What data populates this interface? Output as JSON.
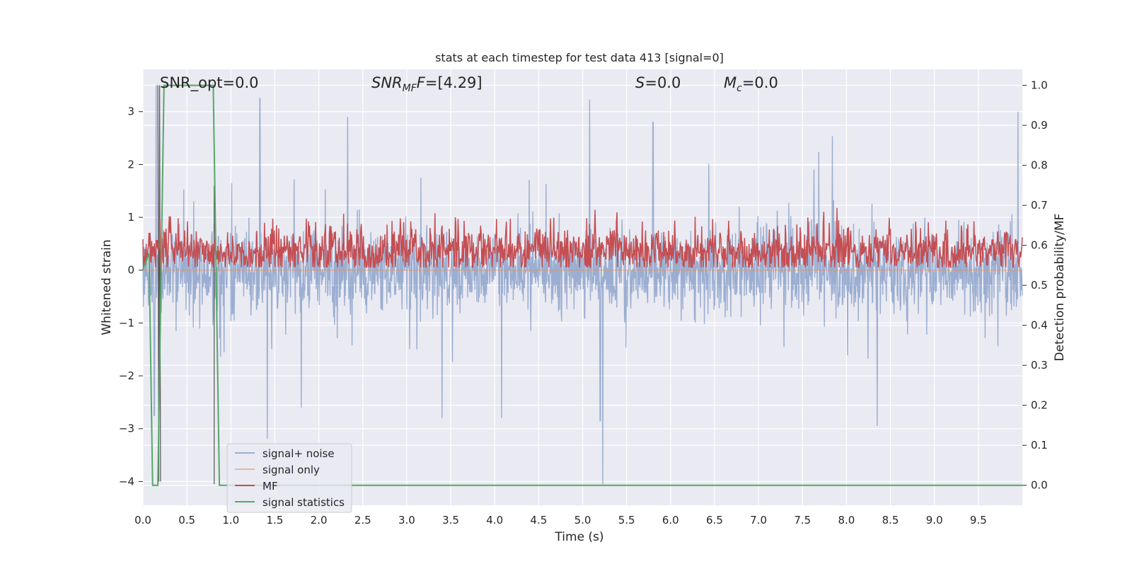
{
  "chart_data": {
    "type": "line",
    "title": "stats at each timestep for test data 413 [signal=0]",
    "xlabel": "Time (s)",
    "ylabel_left": "Whitened strain",
    "ylabel_right": "Detection probability/MF",
    "xlim": [
      0.0,
      10.0
    ],
    "ylim_left": [
      -4.45,
      3.8
    ],
    "ylim_right": [
      -0.05,
      1.04
    ],
    "x_ticks": [
      "0.0",
      "0.5",
      "1.0",
      "1.5",
      "2.0",
      "2.5",
      "3.0",
      "3.5",
      "4.0",
      "4.5",
      "5.0",
      "5.5",
      "6.0",
      "6.5",
      "7.0",
      "7.5",
      "8.0",
      "8.5",
      "9.0",
      "9.5"
    ],
    "y_ticks_left": [
      "3",
      "2",
      "1",
      "0",
      "−1",
      "−2",
      "−3",
      "−4"
    ],
    "y_ticks_right": [
      "1.0",
      "0.9",
      "0.8",
      "0.7",
      "0.6",
      "0.5",
      "0.4",
      "0.3",
      "0.2",
      "0.1",
      "0.0"
    ],
    "grid": true,
    "legend_position": "lower-left",
    "annotations": {
      "snr_opt": "SNR_opt=0.0",
      "snr_mf_var": "SNR",
      "snr_mf_sub": "MF",
      "snr_mf_var2": "F",
      "snr_mf_value": "=[4.29]",
      "s_var": "S",
      "s_value": "=0.0",
      "mc_var": "M",
      "mc_sub": "c",
      "mc_value": "=0.0"
    },
    "series": [
      {
        "name": "signal+ noise",
        "color": "#4c72b0",
        "axis": "left",
        "style": "noise band",
        "typical_range": [
          -1.4,
          1.5
        ],
        "notable_peaks": [
          [
            0.15,
            3.5
          ],
          [
            1.33,
            3.25
          ],
          [
            2.33,
            2.9
          ],
          [
            5.8,
            2.8
          ],
          [
            9.95,
            3.0
          ]
        ],
        "notable_troughs": [
          [
            0.13,
            -2.75
          ],
          [
            1.8,
            -2.6
          ],
          [
            3.4,
            -2.8
          ],
          [
            5.2,
            -2.85
          ],
          [
            5.23,
            -4.05
          ],
          [
            8.35,
            -2.95
          ]
        ]
      },
      {
        "name": "signal only",
        "color": "#dd8452",
        "axis": "left",
        "values_constant": 0.0
      },
      {
        "name": "MF",
        "color": "#c44e52",
        "axis": "right",
        "style": "noise band",
        "typical_range": [
          0.54,
          0.63
        ],
        "notable_peaks": [
          [
            1.88,
            0.66
          ],
          [
            3.32,
            0.68
          ],
          [
            3.55,
            0.67
          ],
          [
            9.45,
            0.66
          ]
        ]
      },
      {
        "name": "signal statistics",
        "color": "#55a868",
        "axis": "right",
        "x": [
          0.0,
          0.07,
          0.11,
          0.17,
          0.24,
          0.8,
          0.87,
          10.0
        ],
        "values": [
          0.54,
          0.58,
          0.0,
          0.0,
          1.0,
          1.0,
          0.0,
          0.0
        ]
      }
    ],
    "extra_lines": [
      {
        "color": "#555555",
        "axis": "left",
        "x": [
          0.17,
          0.18,
          0.19,
          0.2
        ],
        "values": [
          3.5,
          -4.0,
          3.5,
          -4.0
        ]
      },
      {
        "color": "#555555",
        "axis": "left",
        "x": [
          0.81,
          0.81
        ],
        "values": [
          1.6,
          -4.05
        ]
      }
    ],
    "legend": {
      "entries": [
        {
          "label": "signal+ noise",
          "color": "#4c72b0",
          "opacity": 0.5
        },
        {
          "label": "signal only",
          "color": "#dd8452",
          "opacity": 0.5
        },
        {
          "label": "MF",
          "color": "#c44e52",
          "opacity": 1
        },
        {
          "label": "signal statistics",
          "color": "#55a868",
          "opacity": 1
        }
      ]
    }
  }
}
